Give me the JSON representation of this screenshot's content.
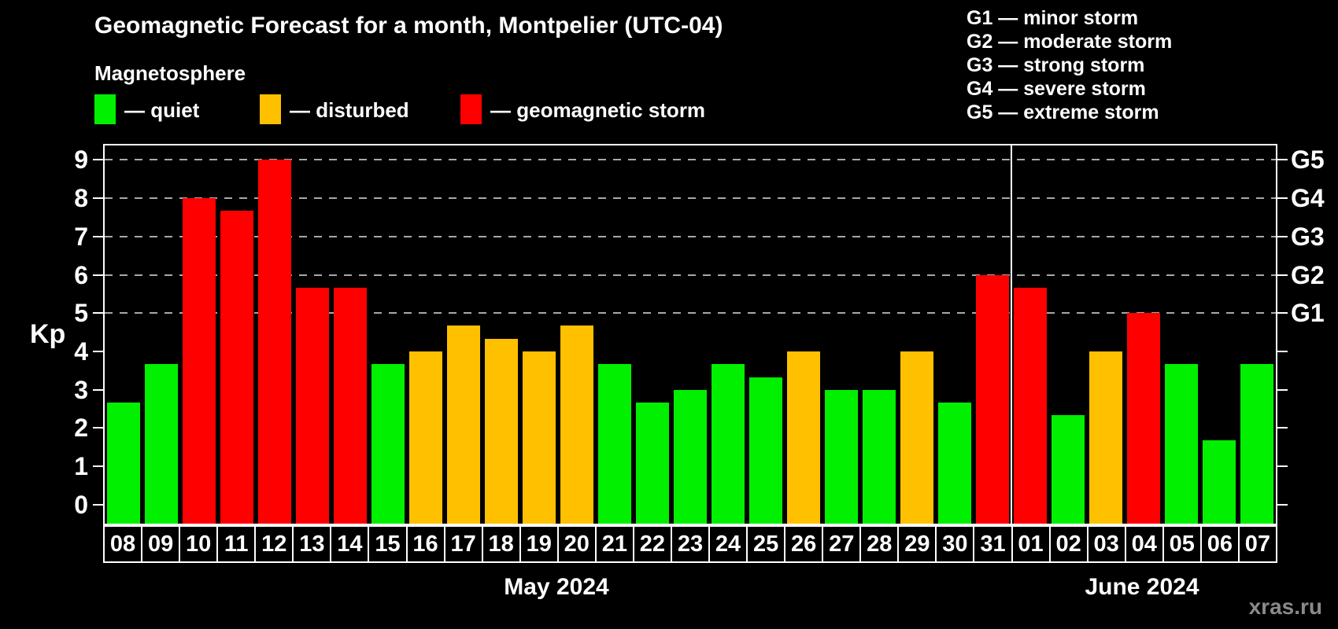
{
  "header": {
    "title": "Geomagnetic Forecast for a month, Montpelier (UTC-04)",
    "subtitle": "Magnetosphere"
  },
  "legend": {
    "items": [
      {
        "key": "quiet",
        "label": "— quiet",
        "color": "#00f000"
      },
      {
        "key": "disturbed",
        "label": "— disturbed",
        "color": "#ffc000"
      },
      {
        "key": "storm",
        "label": "— geomagnetic storm",
        "color": "#ff0000"
      }
    ]
  },
  "storm_scale": {
    "items": [
      "G1 — minor storm",
      "G2 — moderate storm",
      "G3 — strong storm",
      "G4 — severe storm",
      "G5 — extreme storm"
    ]
  },
  "watermark": "xras.ru",
  "chart_data": {
    "type": "bar",
    "title": "Geomagnetic Forecast for a month, Montpelier (UTC-04)",
    "ylabel": "Kp",
    "ylim": [
      0,
      9
    ],
    "y_ticks": [
      0,
      1,
      2,
      3,
      4,
      5,
      6,
      7,
      8,
      9
    ],
    "grid_levels_kp": [
      5,
      6,
      7,
      8,
      9
    ],
    "grid_color": "#a8a8a8",
    "legend_position": "top",
    "right_axis": [
      {
        "label": "G1",
        "kp": 5
      },
      {
        "label": "G2",
        "kp": 6
      },
      {
        "label": "G3",
        "kp": 7
      },
      {
        "label": "G4",
        "kp": 8
      },
      {
        "label": "G5",
        "kp": 9
      }
    ],
    "status_colors": {
      "quiet": "#00f000",
      "disturbed": "#ffc000",
      "storm": "#ff0000"
    },
    "months": [
      {
        "label": "May 2024",
        "start_index": 0,
        "days": 24
      },
      {
        "label": "June 2024",
        "start_index": 24,
        "days": 7
      }
    ],
    "bars": [
      {
        "day": "08",
        "month": "May 2024",
        "kp": 2.67,
        "status": "quiet"
      },
      {
        "day": "09",
        "month": "May 2024",
        "kp": 3.67,
        "status": "quiet"
      },
      {
        "day": "10",
        "month": "May 2024",
        "kp": 8.0,
        "status": "storm"
      },
      {
        "day": "11",
        "month": "May 2024",
        "kp": 7.67,
        "status": "storm"
      },
      {
        "day": "12",
        "month": "May 2024",
        "kp": 9.0,
        "status": "storm"
      },
      {
        "day": "13",
        "month": "May 2024",
        "kp": 5.67,
        "status": "storm"
      },
      {
        "day": "14",
        "month": "May 2024",
        "kp": 5.67,
        "status": "storm"
      },
      {
        "day": "15",
        "month": "May 2024",
        "kp": 3.67,
        "status": "quiet"
      },
      {
        "day": "16",
        "month": "May 2024",
        "kp": 4.0,
        "status": "disturbed"
      },
      {
        "day": "17",
        "month": "May 2024",
        "kp": 4.67,
        "status": "disturbed"
      },
      {
        "day": "18",
        "month": "May 2024",
        "kp": 4.33,
        "status": "disturbed"
      },
      {
        "day": "19",
        "month": "May 2024",
        "kp": 4.0,
        "status": "disturbed"
      },
      {
        "day": "20",
        "month": "May 2024",
        "kp": 4.67,
        "status": "disturbed"
      },
      {
        "day": "21",
        "month": "May 2024",
        "kp": 3.67,
        "status": "quiet"
      },
      {
        "day": "22",
        "month": "May 2024",
        "kp": 2.67,
        "status": "quiet"
      },
      {
        "day": "23",
        "month": "May 2024",
        "kp": 3.0,
        "status": "quiet"
      },
      {
        "day": "24",
        "month": "May 2024",
        "kp": 3.67,
        "status": "quiet"
      },
      {
        "day": "25",
        "month": "May 2024",
        "kp": 3.33,
        "status": "quiet"
      },
      {
        "day": "26",
        "month": "May 2024",
        "kp": 4.0,
        "status": "disturbed"
      },
      {
        "day": "27",
        "month": "May 2024",
        "kp": 3.0,
        "status": "quiet"
      },
      {
        "day": "28",
        "month": "May 2024",
        "kp": 3.0,
        "status": "quiet"
      },
      {
        "day": "29",
        "month": "May 2024",
        "kp": 4.0,
        "status": "disturbed"
      },
      {
        "day": "30",
        "month": "May 2024",
        "kp": 2.67,
        "status": "quiet"
      },
      {
        "day": "31",
        "month": "May 2024",
        "kp": 6.0,
        "status": "storm"
      },
      {
        "day": "01",
        "month": "June 2024",
        "kp": 5.67,
        "status": "storm"
      },
      {
        "day": "02",
        "month": "June 2024",
        "kp": 2.33,
        "status": "quiet"
      },
      {
        "day": "03",
        "month": "June 2024",
        "kp": 4.0,
        "status": "disturbed"
      },
      {
        "day": "04",
        "month": "June 2024",
        "kp": 5.0,
        "status": "storm"
      },
      {
        "day": "05",
        "month": "June 2024",
        "kp": 3.67,
        "status": "quiet"
      },
      {
        "day": "06",
        "month": "June 2024",
        "kp": 1.67,
        "status": "quiet"
      },
      {
        "day": "07",
        "month": "June 2024",
        "kp": 3.67,
        "status": "quiet"
      }
    ]
  }
}
